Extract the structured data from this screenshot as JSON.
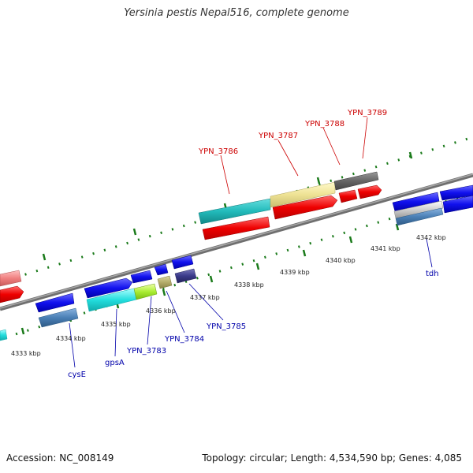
{
  "title": "Yersinia pestis Nepal516, complete genome",
  "footer": {
    "accession": "Accession: NC_008149",
    "stats": "Topology: circular; Length: 4,534,590 bp; Genes: 4,085"
  },
  "scale": {
    "ticks": [
      {
        "label": "4333 kbp"
      },
      {
        "label": "4334 kbp"
      },
      {
        "label": "4335 kbp"
      },
      {
        "label": "4336 kbp"
      },
      {
        "label": "4337 kbp"
      },
      {
        "label": "4338 kbp"
      },
      {
        "label": "4339 kbp"
      },
      {
        "label": "4340 kbp"
      },
      {
        "label": "4341 kbp"
      },
      {
        "label": "4342 kbp"
      }
    ]
  },
  "colors": {
    "backbone": "#888888",
    "red_label": "#cc0000",
    "blue_label": "#0000aa",
    "tick": "#1a7a1a"
  },
  "gene_labels": {
    "top": [
      {
        "name": "YPN_3786"
      },
      {
        "name": "YPN_3787"
      },
      {
        "name": "YPN_3788"
      },
      {
        "name": "YPN_3789"
      }
    ],
    "bottom": [
      {
        "name": "cysE"
      },
      {
        "name": "gpsA"
      },
      {
        "name": "YPN_3783"
      },
      {
        "name": "YPN_3784"
      },
      {
        "name": "YPN_3785"
      },
      {
        "name": "tdh"
      }
    ]
  }
}
